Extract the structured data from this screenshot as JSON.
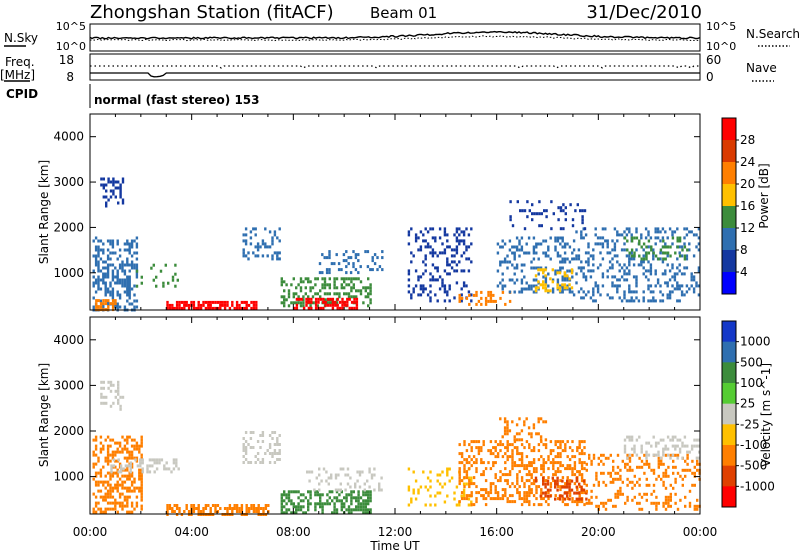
{
  "header": {
    "station": "Zhongshan Station (fitACF)",
    "beam": "Beam 01",
    "date": "31/Dec/2010"
  },
  "strips": {
    "nsky_label": "N.Sky",
    "nsky_ticks": [
      "10^5",
      "10^0"
    ],
    "nsearch_label": "N.Search",
    "nsearch_ticks": [
      "10^5",
      "10^0"
    ],
    "freq_label_1": "Freq.",
    "freq_label_2": "[MHz]",
    "freq_ticks": [
      "18",
      "8"
    ],
    "nave_label": "Nave",
    "nave_ticks": [
      "60",
      "0"
    ],
    "cpid_label": "CPID",
    "cpid_text": "normal (fast stereo) 153"
  },
  "chart_data": [
    {
      "type": "heatmap",
      "title": "Power",
      "ylabel": "Slant Range [km]",
      "xlabel": "Time UT",
      "x_ticks": [
        "00:00",
        "04:00",
        "08:00",
        "12:00",
        "16:00",
        "20:00",
        "00:00"
      ],
      "y_ticks": [
        1000,
        2000,
        3000,
        4000
      ],
      "ylim": [
        180,
        4500
      ],
      "xlim_hours": [
        0,
        24
      ],
      "colorbar": {
        "label": "Power [dB]",
        "ticks": [
          "28",
          "24",
          "20",
          "16",
          "12",
          "8",
          "4"
        ],
        "colors": [
          "#ff0000",
          "#d93a00",
          "#ff7f00",
          "#ffc000",
          "#3c8c3c",
          "#2f6fb0",
          "#1438a0",
          "#0000ff"
        ]
      },
      "regions": [
        {
          "t0": 0.1,
          "t1": 1.8,
          "r0": 200,
          "r1": 1800,
          "c": "#2f6fb0",
          "d": 0.45
        },
        {
          "t0": 0.4,
          "t1": 1.3,
          "r0": 2500,
          "r1": 3100,
          "c": "#1438a0",
          "d": 0.35
        },
        {
          "t0": 1.8,
          "t1": 3.5,
          "r0": 700,
          "r1": 1200,
          "c": "#3c8c3c",
          "d": 0.15
        },
        {
          "t0": 0.2,
          "t1": 1.0,
          "r0": 200,
          "r1": 420,
          "c": "#ff7f00",
          "d": 0.6
        },
        {
          "t0": 3.0,
          "t1": 6.5,
          "r0": 200,
          "r1": 380,
          "c": "#ff0000",
          "d": 0.7
        },
        {
          "t0": 6.0,
          "t1": 7.5,
          "r0": 1300,
          "r1": 2000,
          "c": "#2f6fb0",
          "d": 0.35
        },
        {
          "t0": 7.5,
          "t1": 11.0,
          "r0": 300,
          "r1": 900,
          "c": "#3c8c3c",
          "d": 0.4
        },
        {
          "t0": 8.0,
          "t1": 10.5,
          "r0": 200,
          "r1": 450,
          "c": "#ff0000",
          "d": 0.6
        },
        {
          "t0": 9.0,
          "t1": 11.5,
          "r0": 1000,
          "r1": 1500,
          "c": "#2f6fb0",
          "d": 0.2
        },
        {
          "t0": 12.5,
          "t1": 15.0,
          "r0": 400,
          "r1": 2000,
          "c": "#1438a0",
          "d": 0.25
        },
        {
          "t0": 14.5,
          "t1": 16.5,
          "r0": 300,
          "r1": 600,
          "c": "#ff7f00",
          "d": 0.35
        },
        {
          "t0": 16.0,
          "t1": 19.0,
          "r0": 600,
          "r1": 1800,
          "c": "#2f6fb0",
          "d": 0.3
        },
        {
          "t0": 17.5,
          "t1": 19.0,
          "r0": 600,
          "r1": 1100,
          "c": "#ffc000",
          "d": 0.3
        },
        {
          "t0": 19.0,
          "t1": 24.0,
          "r0": 400,
          "r1": 2000,
          "c": "#2f6fb0",
          "d": 0.25
        },
        {
          "t0": 21.0,
          "t1": 23.5,
          "r0": 1300,
          "r1": 1800,
          "c": "#3c8c3c",
          "d": 0.25
        },
        {
          "t0": 16.5,
          "t1": 19.5,
          "r0": 2000,
          "r1": 2600,
          "c": "#1438a0",
          "d": 0.15
        }
      ]
    },
    {
      "type": "heatmap",
      "title": "Velocity",
      "ylabel": "Slant Range [km]",
      "xlabel": "Time UT",
      "x_ticks": [
        "00:00",
        "04:00",
        "08:00",
        "12:00",
        "16:00",
        "20:00",
        "00:00"
      ],
      "y_ticks": [
        1000,
        2000,
        3000,
        4000
      ],
      "ylim": [
        180,
        4500
      ],
      "xlim_hours": [
        0,
        24
      ],
      "colorbar": {
        "label": "Velocity [m s^-1]",
        "ticks": [
          "1000",
          "500",
          "100",
          "25",
          "-25",
          "-100",
          "-500",
          "-1000"
        ],
        "colors": [
          "#1438c8",
          "#2f6fb0",
          "#3c8c3c",
          "#55cc33",
          "#c8c8c0",
          "#ffc000",
          "#ff7f00",
          "#e04000",
          "#ff0000"
        ]
      },
      "regions": [
        {
          "t0": 0.1,
          "t1": 2.0,
          "r0": 200,
          "r1": 1900,
          "c": "#ff7f00",
          "d": 0.45
        },
        {
          "t0": 0.4,
          "t1": 1.3,
          "r0": 2500,
          "r1": 3100,
          "c": "#c8c8c0",
          "d": 0.35
        },
        {
          "t0": 0.8,
          "t1": 3.5,
          "r0": 1100,
          "r1": 1400,
          "c": "#c8c8c0",
          "d": 0.4
        },
        {
          "t0": 3.0,
          "t1": 7.0,
          "r0": 200,
          "r1": 400,
          "c": "#ff7f00",
          "d": 0.6
        },
        {
          "t0": 6.0,
          "t1": 7.5,
          "r0": 1300,
          "r1": 2000,
          "c": "#c8c8c0",
          "d": 0.35
        },
        {
          "t0": 7.5,
          "t1": 11.0,
          "r0": 200,
          "r1": 700,
          "c": "#3c8c3c",
          "d": 0.5
        },
        {
          "t0": 8.5,
          "t1": 11.5,
          "r0": 700,
          "r1": 1200,
          "c": "#c8c8c0",
          "d": 0.2
        },
        {
          "t0": 12.5,
          "t1": 15.0,
          "r0": 400,
          "r1": 1200,
          "c": "#ffc000",
          "d": 0.2
        },
        {
          "t0": 14.5,
          "t1": 19.5,
          "r0": 400,
          "r1": 1800,
          "c": "#ff7f00",
          "d": 0.4
        },
        {
          "t0": 17.5,
          "t1": 19.5,
          "r0": 500,
          "r1": 1000,
          "c": "#e04000",
          "d": 0.3
        },
        {
          "t0": 19.5,
          "t1": 24.0,
          "r0": 300,
          "r1": 1500,
          "c": "#ff7f00",
          "d": 0.25
        },
        {
          "t0": 21.0,
          "t1": 24.0,
          "r0": 1400,
          "r1": 1900,
          "c": "#c8c8c0",
          "d": 0.3
        },
        {
          "t0": 16.0,
          "t1": 18.0,
          "r0": 1800,
          "r1": 2300,
          "c": "#ff7f00",
          "d": 0.3
        }
      ]
    }
  ]
}
